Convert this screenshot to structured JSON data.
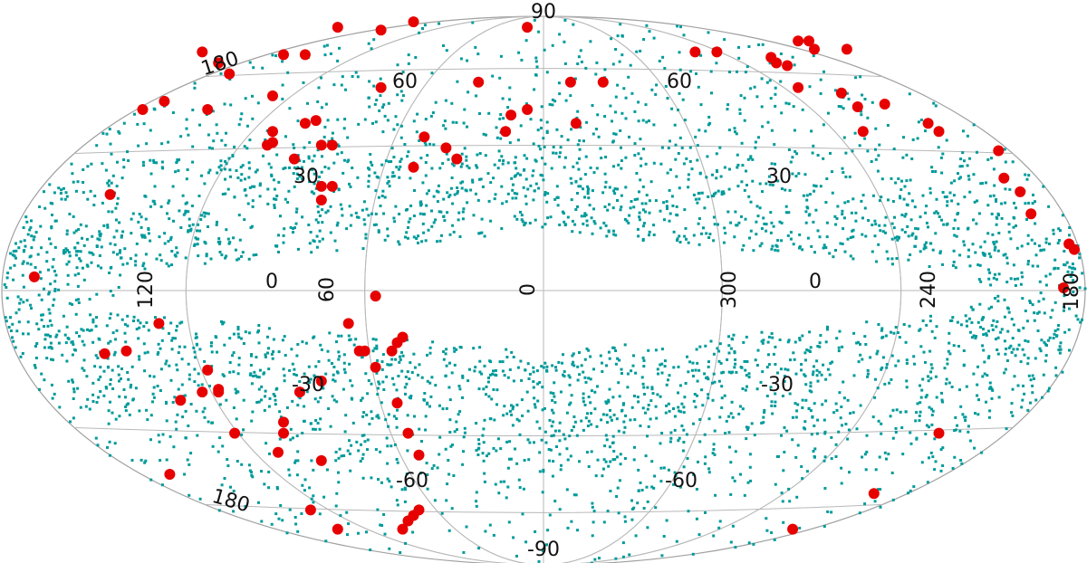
{
  "chart_data": {
    "type": "scatter",
    "projection": "aitoff-hammer",
    "grid": true,
    "colors": {
      "dense_points": "#009a9a",
      "highlight_points": "#e60000",
      "grid": "#b8b8b8",
      "background": "#ffffff"
    },
    "tick_labels": {
      "top": "90",
      "bottom": "-90",
      "upper_left_lon": "180",
      "upper_left_lat": "60",
      "upper_right_lat": "60",
      "mid_left_lat": "30",
      "mid_right_lat": "30",
      "left_edge_lon": "120",
      "center_left_lon": "0",
      "center_left_rot": "60",
      "center_lon": "0",
      "center_right_rot": "300",
      "center_right_lon": "0",
      "right_lon": "240",
      "right_edge_lon": "180",
      "lower_left_lat": "-30",
      "lower_right_lat": "-30",
      "lower_left2_lat": "-60",
      "lower_right2_lat": "-60",
      "lower_left_lon": "180"
    },
    "series": [
      {
        "marker": "square",
        "color": "#009a9a",
        "count_estimate": 16000,
        "note": "dense background points avoiding |lat|<~10 near center"
      },
      {
        "marker": "circle",
        "color": "#e60000",
        "points": [
          [
            -0.94,
            0.05
          ],
          [
            -0.8,
            0.35
          ],
          [
            -0.74,
            0.66
          ],
          [
            -0.7,
            0.69
          ],
          [
            -0.62,
            0.66
          ],
          [
            -0.63,
            0.87
          ],
          [
            -0.6,
            0.83
          ],
          [
            -0.58,
            0.79
          ],
          [
            -0.48,
            0.86
          ],
          [
            -0.44,
            0.86
          ],
          [
            -0.38,
            0.96
          ],
          [
            -0.3,
            0.95
          ],
          [
            -0.24,
            0.98
          ],
          [
            -0.5,
            0.71
          ],
          [
            -0.44,
            0.61
          ],
          [
            -0.5,
            0.58
          ],
          [
            -0.5,
            0.54
          ],
          [
            -0.51,
            0.53
          ],
          [
            -0.46,
            0.48
          ],
          [
            -0.41,
            0.53
          ],
          [
            -0.39,
            0.53
          ],
          [
            -0.42,
            0.62
          ],
          [
            -0.41,
            0.38
          ],
          [
            -0.39,
            0.38
          ],
          [
            -0.41,
            0.33
          ],
          [
            -0.3,
            0.74
          ],
          [
            -0.22,
            0.56
          ],
          [
            -0.24,
            0.45
          ],
          [
            -0.18,
            0.52
          ],
          [
            -0.16,
            0.48
          ],
          [
            -0.12,
            0.76
          ],
          [
            -0.07,
            0.58
          ],
          [
            -0.06,
            0.64
          ],
          [
            -0.03,
            0.66
          ],
          [
            -0.03,
            0.96
          ],
          [
            0.05,
            0.76
          ],
          [
            0.06,
            0.61
          ],
          [
            0.11,
            0.76
          ],
          [
            0.28,
            0.87
          ],
          [
            0.32,
            0.87
          ],
          [
            0.42,
            0.85
          ],
          [
            0.43,
            0.83
          ],
          [
            0.45,
            0.82
          ],
          [
            0.47,
            0.91
          ],
          [
            0.49,
            0.91
          ],
          [
            0.5,
            0.88
          ],
          [
            0.47,
            0.74
          ],
          [
            0.56,
            0.88
          ],
          [
            0.55,
            0.72
          ],
          [
            0.58,
            0.67
          ],
          [
            0.59,
            0.58
          ],
          [
            0.63,
            0.68
          ],
          [
            0.71,
            0.61
          ],
          [
            0.73,
            0.58
          ],
          [
            0.84,
            0.51
          ],
          [
            0.85,
            0.41
          ],
          [
            0.88,
            0.36
          ],
          [
            0.9,
            0.28
          ],
          [
            0.97,
            0.17
          ],
          [
            0.98,
            0.15
          ],
          [
            0.96,
            0.01
          ],
          [
            -0.71,
            -0.12
          ],
          [
            -0.77,
            -0.22
          ],
          [
            -0.81,
            -0.23
          ],
          [
            -0.62,
            -0.29
          ],
          [
            -0.6,
            -0.36
          ],
          [
            -0.6,
            -0.37
          ],
          [
            -0.63,
            -0.37
          ],
          [
            -0.67,
            -0.4
          ],
          [
            -0.57,
            -0.52
          ],
          [
            -0.48,
            -0.52
          ],
          [
            -0.48,
            -0.48
          ],
          [
            -0.45,
            -0.37
          ],
          [
            -0.41,
            -0.33
          ],
          [
            -0.49,
            -0.59
          ],
          [
            -0.41,
            -0.62
          ],
          [
            -0.69,
            -0.67
          ],
          [
            -0.43,
            -0.8
          ],
          [
            -0.38,
            -0.87
          ],
          [
            -0.26,
            -0.87
          ],
          [
            -0.25,
            -0.84
          ],
          [
            -0.24,
            -0.82
          ],
          [
            -0.23,
            -0.8
          ],
          [
            -0.23,
            -0.6
          ],
          [
            -0.25,
            -0.52
          ],
          [
            -0.27,
            -0.41
          ],
          [
            -0.31,
            -0.28
          ],
          [
            -0.28,
            -0.22
          ],
          [
            -0.27,
            -0.19
          ],
          [
            -0.26,
            -0.17
          ],
          [
            -0.34,
            -0.22
          ],
          [
            -0.33,
            -0.22
          ],
          [
            -0.36,
            -0.12
          ],
          [
            -0.31,
            -0.02
          ],
          [
            0.61,
            -0.74
          ],
          [
            0.46,
            -0.87
          ],
          [
            0.73,
            -0.52
          ]
        ]
      }
    ]
  }
}
